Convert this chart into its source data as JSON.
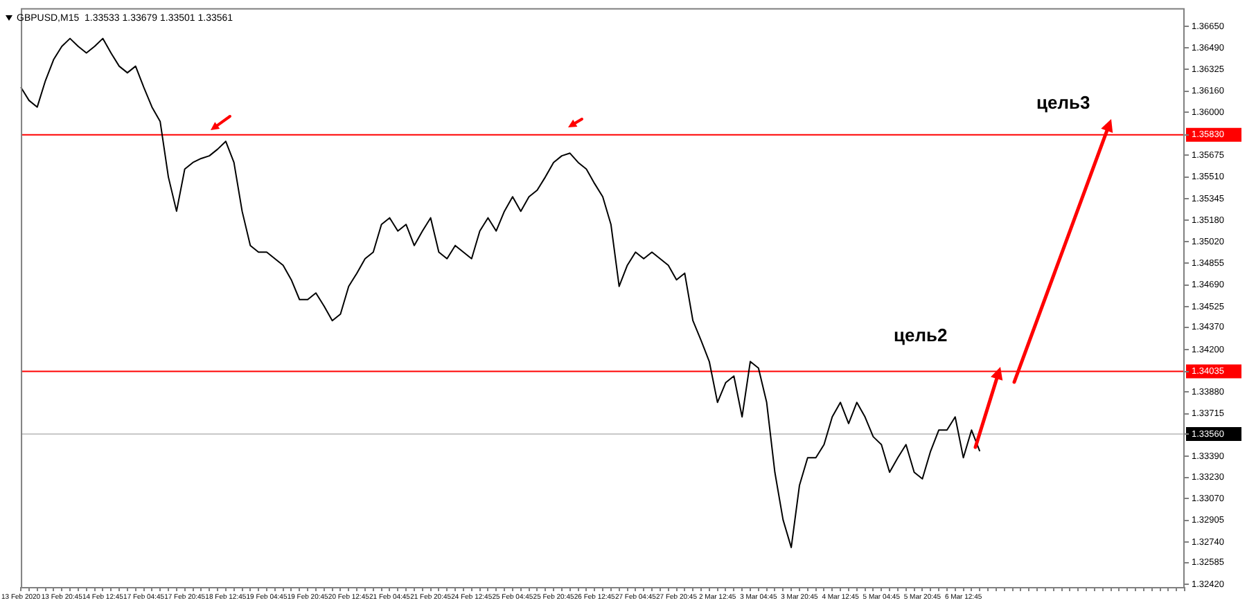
{
  "chart_data": {
    "type": "line",
    "title": "GBPUSD,M15  1.33533 1.33679 1.33501 1.33561",
    "categories": [
      "13 Feb 2020",
      null,
      null,
      null,
      null,
      "13 Feb 20:45",
      null,
      null,
      null,
      null,
      "14 Feb 12:45",
      null,
      null,
      null,
      null,
      "17 Feb 04:45",
      null,
      null,
      null,
      null,
      "17 Feb 20:45",
      null,
      null,
      null,
      null,
      "18 Feb 12:45",
      null,
      null,
      null,
      null,
      "19 Feb 04:45",
      null,
      null,
      null,
      null,
      "19 Feb 20:45",
      null,
      null,
      null,
      null,
      "20 Feb 12:45",
      null,
      null,
      null,
      null,
      "21 Feb 04:45",
      null,
      null,
      null,
      null,
      "21 Feb 20:45",
      null,
      null,
      null,
      null,
      "24 Feb 12:45",
      null,
      null,
      null,
      null,
      "25 Feb 04:45",
      null,
      null,
      null,
      null,
      "25 Feb 20:45",
      null,
      null,
      null,
      null,
      "26 Feb 12:45",
      null,
      null,
      null,
      null,
      "27 Feb 04:45",
      null,
      null,
      null,
      null,
      "27 Feb 20:45",
      null,
      null,
      null,
      null,
      "2 Mar 12:45",
      null,
      null,
      null,
      null,
      "3 Mar 04:45",
      null,
      null,
      null,
      null,
      "3 Mar 20:45",
      null,
      null,
      null,
      null,
      "4 Mar 12:45",
      null,
      null,
      null,
      null,
      "5 Mar 04:45",
      null,
      null,
      null,
      null,
      "5 Mar 20:45",
      null,
      null,
      null,
      null,
      "6 Mar 12:45",
      null,
      null,
      null,
      null,
      null,
      null,
      null,
      null,
      null,
      null,
      null,
      null,
      null,
      null,
      null,
      null,
      null,
      null,
      null,
      null,
      null,
      null,
      null,
      null,
      null,
      null,
      null
    ],
    "values": [
      1.3619,
      1.3609,
      1.3604,
      1.3624,
      1.364,
      1.365,
      1.3656,
      1.365,
      1.3645,
      1.365,
      1.3656,
      1.3645,
      1.3635,
      1.363,
      1.3635,
      1.3619,
      1.3604,
      1.3593,
      1.3551,
      1.3525,
      1.3557,
      1.3562,
      1.3565,
      1.3567,
      1.3572,
      1.3578,
      1.3562,
      1.3525,
      1.3499,
      1.3494,
      1.3494,
      1.3489,
      1.3484,
      1.3473,
      1.3458,
      1.3458,
      1.3463,
      1.3453,
      1.3442,
      1.3447,
      1.3468,
      1.3478,
      1.3489,
      1.3494,
      1.3515,
      1.352,
      1.351,
      1.3515,
      1.3499,
      1.351,
      1.352,
      1.3494,
      1.3489,
      1.3499,
      1.3494,
      1.3489,
      1.351,
      1.352,
      1.351,
      1.3525,
      1.3536,
      1.3525,
      1.3536,
      1.3541,
      1.3551,
      1.3562,
      1.3567,
      1.3569,
      1.3562,
      1.3557,
      1.3546,
      1.3536,
      1.3515,
      1.3468,
      1.3484,
      1.3494,
      1.3489,
      1.3494,
      1.3489,
      1.3484,
      1.3473,
      1.3478,
      1.3442,
      1.3427,
      1.3411,
      1.338,
      1.3395,
      1.34,
      1.3369,
      1.3411,
      1.3406,
      1.338,
      1.3327,
      1.3291,
      1.327,
      1.3317,
      1.3338,
      1.3338,
      1.3348,
      1.3369,
      1.338,
      1.3364,
      1.338,
      1.3369,
      1.3354,
      1.3348,
      1.3327,
      1.3338,
      1.3348,
      1.3327,
      1.3322,
      1.3343,
      1.3359,
      1.3359,
      1.3369,
      1.3338,
      1.3359,
      1.3343,
      null,
      null,
      null,
      null,
      null,
      null,
      null,
      null,
      null,
      null,
      null,
      null,
      null,
      null,
      null,
      null,
      null,
      null,
      null,
      null,
      null,
      null,
      null,
      null,
      null
    ],
    "color": "#000000",
    "ylim": [
      1.324,
      1.3679
    ],
    "yticks": [
      {
        "value": 1.3665,
        "label": "1.36650"
      },
      {
        "value": 1.3649,
        "label": "1.36490"
      },
      {
        "value": 1.36325,
        "label": "1.36325"
      },
      {
        "value": 1.3616,
        "label": "1.36160"
      },
      {
        "value": 1.36,
        "label": "1.36000"
      },
      {
        "value": 1.3583,
        "label": "1.35830"
      },
      {
        "value": 1.35675,
        "label": "1.35675"
      },
      {
        "value": 1.3551,
        "label": "1.35510"
      },
      {
        "value": 1.35345,
        "label": "1.35345"
      },
      {
        "value": 1.3518,
        "label": "1.35180"
      },
      {
        "value": 1.3502,
        "label": "1.35020"
      },
      {
        "value": 1.34855,
        "label": "1.34855"
      },
      {
        "value": 1.3469,
        "label": "1.34690"
      },
      {
        "value": 1.34525,
        "label": "1.34525"
      },
      {
        "value": 1.3437,
        "label": "1.34370"
      },
      {
        "value": 1.342,
        "label": "1.34200"
      },
      {
        "value": 1.34035,
        "label": "1.34035"
      },
      {
        "value": 1.3388,
        "label": "1.33880"
      },
      {
        "value": 1.33715,
        "label": "1.33715"
      },
      {
        "value": 1.3356,
        "label": "1.33560"
      },
      {
        "value": 1.3339,
        "label": "1.33390"
      },
      {
        "value": 1.3323,
        "label": "1.33230"
      },
      {
        "value": 1.3307,
        "label": "1.33070"
      },
      {
        "value": 1.32905,
        "label": "1.32905"
      },
      {
        "value": 1.3274,
        "label": "1.32740"
      },
      {
        "value": 1.32585,
        "label": "1.32585"
      },
      {
        "value": 1.3242,
        "label": "1.32420"
      }
    ],
    "ref_lines": [
      {
        "axis": "y",
        "value": 1.3583,
        "color": "#ff0000"
      },
      {
        "axis": "y",
        "value": 1.34035,
        "color": "#ff0000"
      },
      {
        "axis": "y",
        "value": 1.3356,
        "color": "#c8c8c8",
        "line_style": "solid"
      }
    ],
    "annotations": [
      "цель2",
      "цель3"
    ]
  }
}
